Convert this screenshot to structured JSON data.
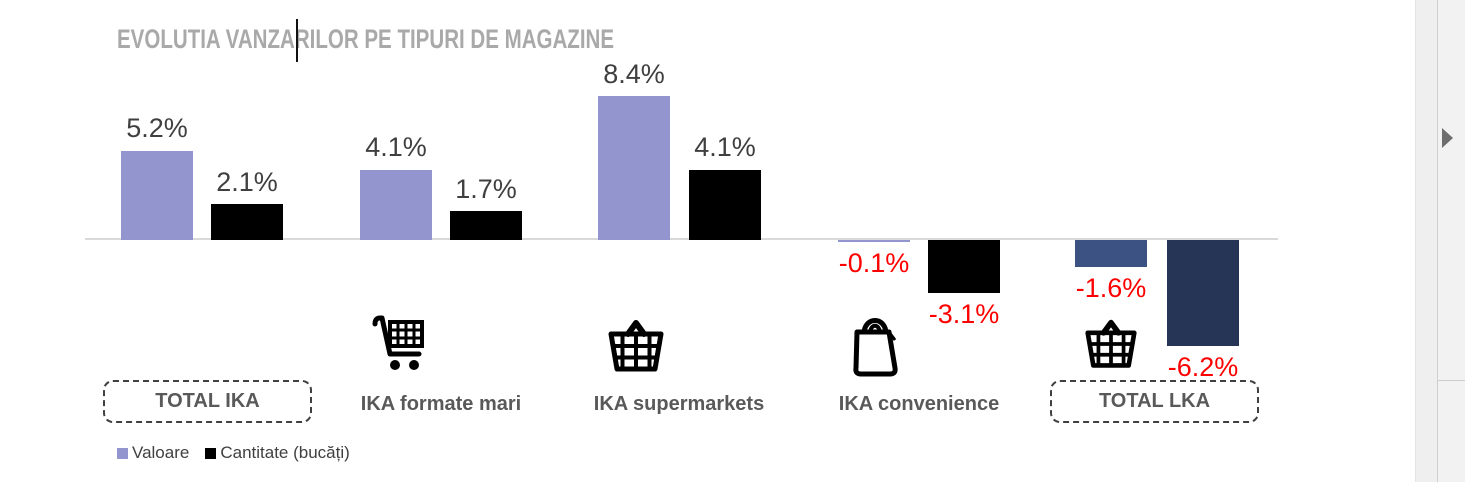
{
  "title": "EVOLUTIA VANZARILOR PE TIPURI DE MAGAZINE",
  "colors": {
    "valoare": "#9396CE",
    "cantitate": "#000000",
    "lka_valoare": "#3C5282",
    "lka_cantitate": "#263555",
    "value_label": "#3F3F3F",
    "negative_label": "#FF0000",
    "category_label": "#595959",
    "title_text": "#A9A9A9",
    "axis_line": "#D9D9D9"
  },
  "legend": {
    "items": [
      {
        "label": "Valoare",
        "color": "#9396CE"
      },
      {
        "label": "Cantitate (bucăți)",
        "color": "#000000"
      }
    ]
  },
  "chart_data": {
    "type": "bar",
    "title": "EVOLUTIA VANZARILOR PE TIPURI DE MAGAZINE",
    "unit": "%",
    "baseline": 0,
    "grid": false,
    "legend_position": "bottom-left",
    "categories": [
      "TOTAL IKA",
      "IKA formate mari",
      "IKA supermarkets",
      "IKA convenience",
      "TOTAL LKA"
    ],
    "series": [
      {
        "name": "Valoare",
        "values": [
          5.2,
          4.1,
          8.4,
          -0.1,
          -1.6
        ]
      },
      {
        "name": "Cantitate (bucăți)",
        "values": [
          2.1,
          1.7,
          4.1,
          -3.1,
          -6.2
        ]
      }
    ],
    "groups": [
      {
        "label": "TOTAL IKA",
        "boxed": true,
        "icon": null,
        "labels": [
          "5.2%",
          "2.1%"
        ],
        "colors": [
          "#9396CE",
          "#000000"
        ]
      },
      {
        "label": "IKA formate mari",
        "boxed": false,
        "icon": "shopping-cart",
        "labels": [
          "4.1%",
          "1.7%"
        ],
        "colors": [
          "#9396CE",
          "#000000"
        ]
      },
      {
        "label": "IKA supermarkets",
        "boxed": false,
        "icon": "shopping-basket",
        "labels": [
          "8.4%",
          "4.1%"
        ],
        "colors": [
          "#9396CE",
          "#000000"
        ]
      },
      {
        "label": "IKA convenience",
        "boxed": false,
        "icon": "shopping-bag",
        "labels": [
          "-0.1%",
          "-3.1%"
        ],
        "colors": [
          "#9396CE",
          "#000000"
        ]
      },
      {
        "label": "TOTAL LKA",
        "boxed": true,
        "icon": "shopping-basket",
        "labels": [
          "-1.6%",
          "-6.2%"
        ],
        "colors": [
          "#3C5282",
          "#263555"
        ]
      }
    ]
  }
}
